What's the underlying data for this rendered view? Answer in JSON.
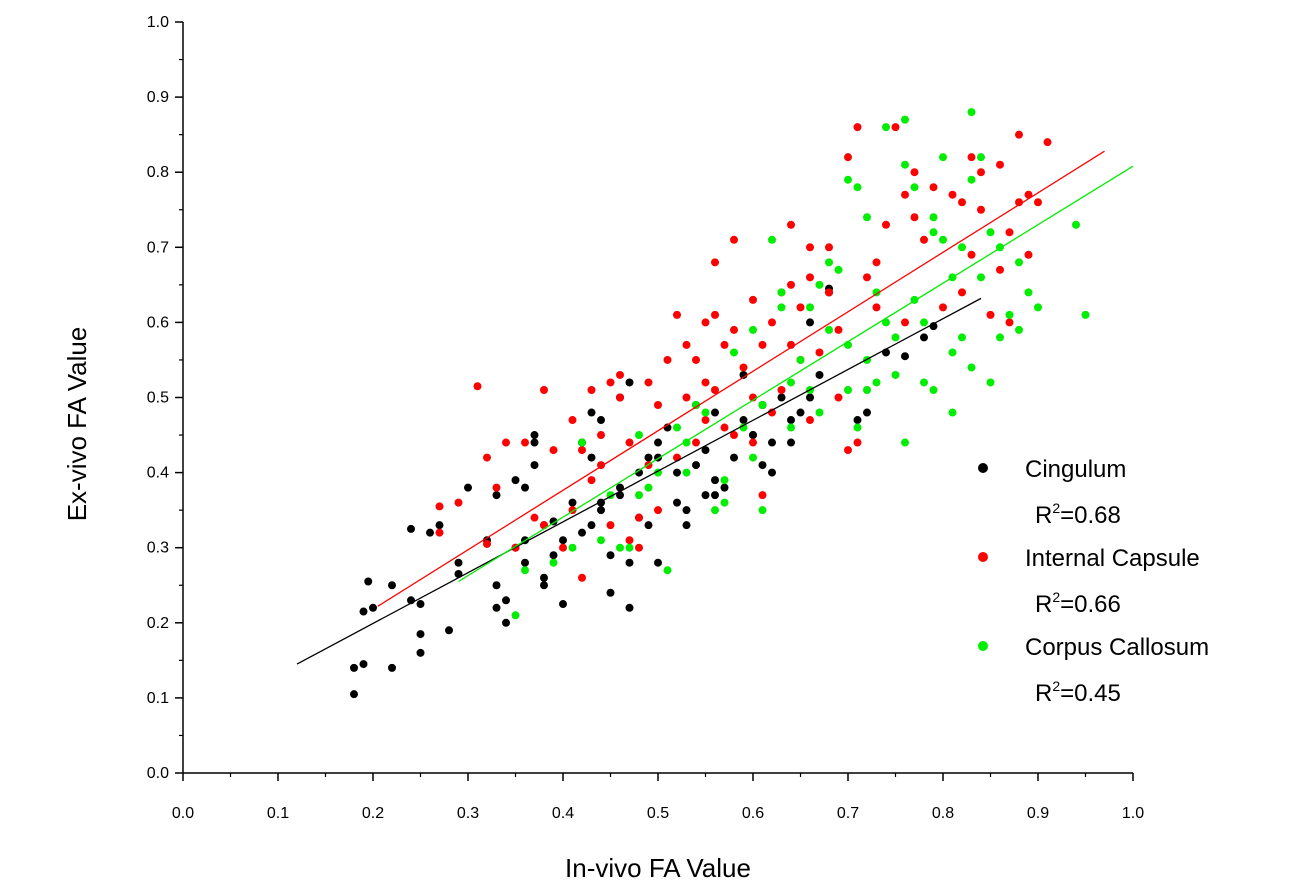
{
  "chart_data": {
    "type": "scatter",
    "title": "",
    "xlabel": "In-vivo FA Value",
    "ylabel": "Ex-vivo FA Value",
    "xlim": [
      0.0,
      1.0
    ],
    "ylim": [
      0.0,
      1.0
    ],
    "x_ticks": [
      "0.0",
      "0.1",
      "0.2",
      "0.3",
      "0.4",
      "0.5",
      "0.6",
      "0.7",
      "0.8",
      "0.9",
      "1.0"
    ],
    "y_ticks": [
      "0.0",
      "0.1",
      "0.2",
      "0.3",
      "0.4",
      "0.5",
      "0.6",
      "0.7",
      "0.8",
      "0.9",
      "1.0"
    ],
    "grid": false,
    "legend_position": "right",
    "series": [
      {
        "name": "Cingulum",
        "r2_label": "=0.68",
        "color": "#000000",
        "fit": {
          "x": [
            0.12,
            0.84
          ],
          "y": [
            0.145,
            0.632
          ]
        },
        "points": [
          [
            0.18,
            0.105
          ],
          [
            0.18,
            0.14
          ],
          [
            0.19,
            0.145
          ],
          [
            0.19,
            0.215
          ],
          [
            0.2,
            0.22
          ],
          [
            0.195,
            0.255
          ],
          [
            0.22,
            0.14
          ],
          [
            0.22,
            0.25
          ],
          [
            0.24,
            0.325
          ],
          [
            0.24,
            0.23
          ],
          [
            0.25,
            0.225
          ],
          [
            0.25,
            0.185
          ],
          [
            0.25,
            0.16
          ],
          [
            0.28,
            0.19
          ],
          [
            0.29,
            0.265
          ],
          [
            0.29,
            0.28
          ],
          [
            0.3,
            0.38
          ],
          [
            0.32,
            0.31
          ],
          [
            0.33,
            0.22
          ],
          [
            0.33,
            0.25
          ],
          [
            0.33,
            0.37
          ],
          [
            0.34,
            0.2
          ],
          [
            0.34,
            0.23
          ],
          [
            0.35,
            0.3
          ],
          [
            0.36,
            0.28
          ],
          [
            0.36,
            0.31
          ],
          [
            0.37,
            0.45
          ],
          [
            0.37,
            0.44
          ],
          [
            0.37,
            0.41
          ],
          [
            0.38,
            0.33
          ],
          [
            0.38,
            0.25
          ],
          [
            0.38,
            0.26
          ],
          [
            0.39,
            0.29
          ],
          [
            0.39,
            0.335
          ],
          [
            0.4,
            0.225
          ],
          [
            0.4,
            0.31
          ],
          [
            0.41,
            0.36
          ],
          [
            0.42,
            0.32
          ],
          [
            0.42,
            0.44
          ],
          [
            0.43,
            0.48
          ],
          [
            0.43,
            0.42
          ],
          [
            0.43,
            0.33
          ],
          [
            0.44,
            0.47
          ],
          [
            0.44,
            0.36
          ],
          [
            0.44,
            0.35
          ],
          [
            0.45,
            0.24
          ],
          [
            0.45,
            0.29
          ],
          [
            0.46,
            0.37
          ],
          [
            0.46,
            0.5
          ],
          [
            0.47,
            0.28
          ],
          [
            0.47,
            0.52
          ],
          [
            0.47,
            0.22
          ],
          [
            0.48,
            0.34
          ],
          [
            0.48,
            0.4
          ],
          [
            0.49,
            0.33
          ],
          [
            0.49,
            0.42
          ],
          [
            0.5,
            0.42
          ],
          [
            0.5,
            0.28
          ],
          [
            0.5,
            0.44
          ],
          [
            0.51,
            0.46
          ],
          [
            0.52,
            0.4
          ],
          [
            0.53,
            0.35
          ],
          [
            0.53,
            0.33
          ],
          [
            0.54,
            0.49
          ],
          [
            0.54,
            0.41
          ],
          [
            0.55,
            0.37
          ],
          [
            0.55,
            0.43
          ],
          [
            0.56,
            0.48
          ],
          [
            0.56,
            0.39
          ],
          [
            0.57,
            0.38
          ],
          [
            0.58,
            0.42
          ],
          [
            0.59,
            0.53
          ],
          [
            0.59,
            0.47
          ],
          [
            0.6,
            0.45
          ],
          [
            0.61,
            0.49
          ],
          [
            0.61,
            0.41
          ],
          [
            0.62,
            0.4
          ],
          [
            0.62,
            0.44
          ],
          [
            0.63,
            0.5
          ],
          [
            0.64,
            0.47
          ],
          [
            0.65,
            0.48
          ],
          [
            0.66,
            0.5
          ],
          [
            0.66,
            0.6
          ],
          [
            0.67,
            0.53
          ],
          [
            0.68,
            0.64
          ],
          [
            0.68,
            0.645
          ],
          [
            0.71,
            0.47
          ],
          [
            0.72,
            0.48
          ],
          [
            0.74,
            0.56
          ],
          [
            0.76,
            0.555
          ],
          [
            0.78,
            0.58
          ],
          [
            0.79,
            0.595
          ],
          [
            0.35,
            0.39
          ],
          [
            0.36,
            0.38
          ],
          [
            0.52,
            0.36
          ],
          [
            0.56,
            0.37
          ],
          [
            0.6,
            0.45
          ],
          [
            0.64,
            0.44
          ],
          [
            0.27,
            0.33
          ],
          [
            0.26,
            0.32
          ],
          [
            0.46,
            0.38
          ]
        ]
      },
      {
        "name": "Internal Capsule",
        "r2_label": "=0.66",
        "color": "#ff0000",
        "fit": {
          "x": [
            0.205,
            0.97
          ],
          "y": [
            0.222,
            0.828
          ]
        },
        "points": [
          [
            0.27,
            0.32
          ],
          [
            0.27,
            0.355
          ],
          [
            0.29,
            0.36
          ],
          [
            0.31,
            0.515
          ],
          [
            0.32,
            0.42
          ],
          [
            0.32,
            0.305
          ],
          [
            0.33,
            0.38
          ],
          [
            0.34,
            0.44
          ],
          [
            0.35,
            0.3
          ],
          [
            0.36,
            0.44
          ],
          [
            0.37,
            0.34
          ],
          [
            0.38,
            0.51
          ],
          [
            0.38,
            0.33
          ],
          [
            0.39,
            0.43
          ],
          [
            0.4,
            0.3
          ],
          [
            0.41,
            0.35
          ],
          [
            0.42,
            0.26
          ],
          [
            0.42,
            0.43
          ],
          [
            0.43,
            0.51
          ],
          [
            0.43,
            0.39
          ],
          [
            0.44,
            0.41
          ],
          [
            0.45,
            0.52
          ],
          [
            0.45,
            0.33
          ],
          [
            0.46,
            0.5
          ],
          [
            0.46,
            0.53
          ],
          [
            0.47,
            0.44
          ],
          [
            0.48,
            0.3
          ],
          [
            0.48,
            0.34
          ],
          [
            0.49,
            0.52
          ],
          [
            0.49,
            0.41
          ],
          [
            0.5,
            0.49
          ],
          [
            0.51,
            0.55
          ],
          [
            0.52,
            0.61
          ],
          [
            0.52,
            0.42
          ],
          [
            0.53,
            0.57
          ],
          [
            0.53,
            0.5
          ],
          [
            0.54,
            0.55
          ],
          [
            0.54,
            0.44
          ],
          [
            0.55,
            0.6
          ],
          [
            0.55,
            0.52
          ],
          [
            0.56,
            0.51
          ],
          [
            0.56,
            0.68
          ],
          [
            0.57,
            0.57
          ],
          [
            0.57,
            0.46
          ],
          [
            0.58,
            0.71
          ],
          [
            0.58,
            0.59
          ],
          [
            0.59,
            0.54
          ],
          [
            0.6,
            0.63
          ],
          [
            0.6,
            0.44
          ],
          [
            0.61,
            0.57
          ],
          [
            0.61,
            0.37
          ],
          [
            0.62,
            0.6
          ],
          [
            0.63,
            0.64
          ],
          [
            0.63,
            0.51
          ],
          [
            0.64,
            0.73
          ],
          [
            0.64,
            0.65
          ],
          [
            0.65,
            0.55
          ],
          [
            0.65,
            0.62
          ],
          [
            0.66,
            0.7
          ],
          [
            0.66,
            0.47
          ],
          [
            0.67,
            0.56
          ],
          [
            0.68,
            0.64
          ],
          [
            0.68,
            0.7
          ],
          [
            0.69,
            0.59
          ],
          [
            0.7,
            0.82
          ],
          [
            0.7,
            0.43
          ],
          [
            0.71,
            0.86
          ],
          [
            0.71,
            0.44
          ],
          [
            0.72,
            0.66
          ],
          [
            0.73,
            0.62
          ],
          [
            0.74,
            0.73
          ],
          [
            0.75,
            0.86
          ],
          [
            0.76,
            0.77
          ],
          [
            0.76,
            0.6
          ],
          [
            0.77,
            0.74
          ],
          [
            0.78,
            0.71
          ],
          [
            0.79,
            0.78
          ],
          [
            0.8,
            0.62
          ],
          [
            0.81,
            0.77
          ],
          [
            0.82,
            0.76
          ],
          [
            0.82,
            0.64
          ],
          [
            0.83,
            0.82
          ],
          [
            0.83,
            0.69
          ],
          [
            0.84,
            0.75
          ],
          [
            0.85,
            0.61
          ],
          [
            0.86,
            0.81
          ],
          [
            0.87,
            0.72
          ],
          [
            0.87,
            0.6
          ],
          [
            0.88,
            0.85
          ],
          [
            0.88,
            0.76
          ],
          [
            0.89,
            0.77
          ],
          [
            0.89,
            0.69
          ],
          [
            0.9,
            0.76
          ],
          [
            0.91,
            0.84
          ],
          [
            0.5,
            0.35
          ],
          [
            0.47,
            0.31
          ],
          [
            0.44,
            0.45
          ],
          [
            0.41,
            0.47
          ],
          [
            0.55,
            0.47
          ],
          [
            0.58,
            0.45
          ],
          [
            0.62,
            0.48
          ],
          [
            0.69,
            0.5
          ],
          [
            0.73,
            0.68
          ],
          [
            0.77,
            0.8
          ],
          [
            0.84,
            0.8
          ],
          [
            0.86,
            0.67
          ],
          [
            0.6,
            0.5
          ],
          [
            0.66,
            0.66
          ],
          [
            0.56,
            0.61
          ],
          [
            0.64,
            0.57
          ]
        ]
      },
      {
        "name": "Corpus Callosum",
        "r2_label": "=0.45",
        "color": "#00ee00",
        "fit": {
          "x": [
            0.29,
            1.0
          ],
          "y": [
            0.255,
            0.808
          ]
        },
        "points": [
          [
            0.35,
            0.21
          ],
          [
            0.36,
            0.27
          ],
          [
            0.39,
            0.28
          ],
          [
            0.41,
            0.3
          ],
          [
            0.44,
            0.31
          ],
          [
            0.45,
            0.37
          ],
          [
            0.46,
            0.3
          ],
          [
            0.47,
            0.3
          ],
          [
            0.48,
            0.45
          ],
          [
            0.49,
            0.38
          ],
          [
            0.5,
            0.4
          ],
          [
            0.51,
            0.27
          ],
          [
            0.52,
            0.46
          ],
          [
            0.53,
            0.44
          ],
          [
            0.54,
            0.49
          ],
          [
            0.55,
            0.48
          ],
          [
            0.56,
            0.35
          ],
          [
            0.57,
            0.36
          ],
          [
            0.58,
            0.56
          ],
          [
            0.59,
            0.46
          ],
          [
            0.6,
            0.59
          ],
          [
            0.61,
            0.35
          ],
          [
            0.61,
            0.49
          ],
          [
            0.62,
            0.71
          ],
          [
            0.63,
            0.64
          ],
          [
            0.64,
            0.46
          ],
          [
            0.65,
            0.55
          ],
          [
            0.66,
            0.62
          ],
          [
            0.67,
            0.48
          ],
          [
            0.68,
            0.68
          ],
          [
            0.69,
            0.67
          ],
          [
            0.7,
            0.79
          ],
          [
            0.7,
            0.57
          ],
          [
            0.71,
            0.78
          ],
          [
            0.71,
            0.46
          ],
          [
            0.72,
            0.74
          ],
          [
            0.72,
            0.55
          ],
          [
            0.73,
            0.64
          ],
          [
            0.73,
            0.52
          ],
          [
            0.74,
            0.6
          ],
          [
            0.74,
            0.86
          ],
          [
            0.75,
            0.53
          ],
          [
            0.76,
            0.87
          ],
          [
            0.76,
            0.44
          ],
          [
            0.77,
            0.63
          ],
          [
            0.77,
            0.78
          ],
          [
            0.78,
            0.6
          ],
          [
            0.78,
            0.52
          ],
          [
            0.79,
            0.74
          ],
          [
            0.79,
            0.51
          ],
          [
            0.8,
            0.82
          ],
          [
            0.8,
            0.71
          ],
          [
            0.81,
            0.56
          ],
          [
            0.81,
            0.48
          ],
          [
            0.82,
            0.58
          ],
          [
            0.82,
            0.7
          ],
          [
            0.83,
            0.79
          ],
          [
            0.83,
            0.54
          ],
          [
            0.84,
            0.66
          ],
          [
            0.84,
            0.82
          ],
          [
            0.85,
            0.52
          ],
          [
            0.85,
            0.72
          ],
          [
            0.86,
            0.7
          ],
          [
            0.87,
            0.61
          ],
          [
            0.88,
            0.68
          ],
          [
            0.88,
            0.59
          ],
          [
            0.89,
            0.64
          ],
          [
            0.9,
            0.62
          ],
          [
            0.94,
            0.73
          ],
          [
            0.95,
            0.61
          ],
          [
            0.76,
            0.81
          ],
          [
            0.79,
            0.72
          ],
          [
            0.83,
            0.88
          ],
          [
            0.68,
            0.59
          ],
          [
            0.64,
            0.52
          ],
          [
            0.6,
            0.42
          ],
          [
            0.57,
            0.39
          ],
          [
            0.53,
            0.4
          ],
          [
            0.48,
            0.37
          ],
          [
            0.42,
            0.44
          ],
          [
            0.63,
            0.62
          ],
          [
            0.66,
            0.51
          ],
          [
            0.72,
            0.51
          ],
          [
            0.75,
            0.58
          ],
          [
            0.67,
            0.65
          ],
          [
            0.7,
            0.51
          ],
          [
            0.81,
            0.66
          ],
          [
            0.86,
            0.58
          ]
        ]
      }
    ]
  }
}
